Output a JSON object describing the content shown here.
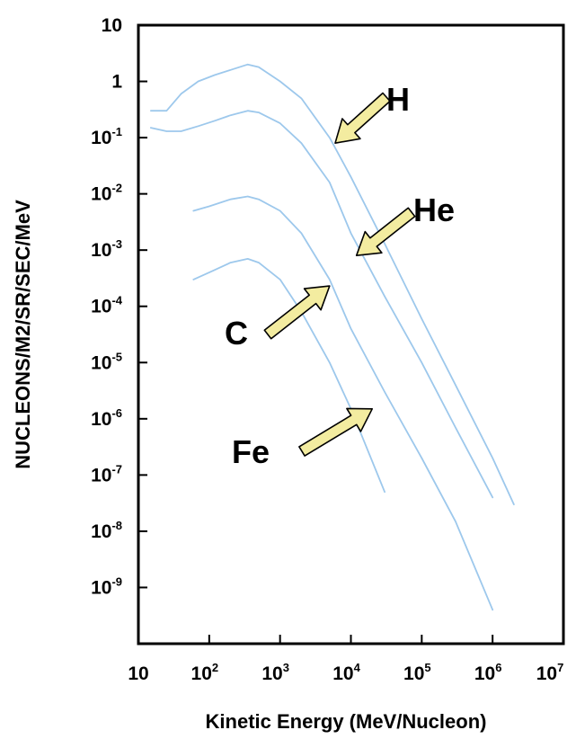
{
  "chart_data": {
    "type": "line",
    "title": "",
    "xlabel": "Kinetic Energy (MeV/Nucleon)",
    "ylabel": "NUCLEONS/M2/SR/SEC/MeV",
    "x_scale": "log",
    "y_scale": "log",
    "xlim": [
      10,
      10000000
    ],
    "ylim": [
      1e-10,
      10
    ],
    "grid": false,
    "legend": "none",
    "x_ticks": [
      {
        "base": "10",
        "exp": ""
      },
      {
        "base": "10",
        "exp": "2"
      },
      {
        "base": "10",
        "exp": "3"
      },
      {
        "base": "10",
        "exp": "4"
      },
      {
        "base": "10",
        "exp": "5"
      },
      {
        "base": "10",
        "exp": "6"
      },
      {
        "base": "10",
        "exp": "7"
      }
    ],
    "x_tick_values": [
      10,
      100,
      1000,
      10000,
      100000,
      1000000,
      10000000
    ],
    "y_ticks": [
      {
        "base": "10",
        "exp": ""
      },
      {
        "base": "1",
        "exp": ""
      },
      {
        "base": "10",
        "exp": "-1"
      },
      {
        "base": "10",
        "exp": "-2"
      },
      {
        "base": "10",
        "exp": "-3"
      },
      {
        "base": "10",
        "exp": "-4"
      },
      {
        "base": "10",
        "exp": "-5"
      },
      {
        "base": "10",
        "exp": "-6"
      },
      {
        "base": "10",
        "exp": "-7"
      },
      {
        "base": "10",
        "exp": "-8"
      },
      {
        "base": "10",
        "exp": "-9"
      }
    ],
    "y_tick_values": [
      10,
      1,
      0.1,
      0.01,
      0.001,
      0.0001,
      1e-05,
      1e-06,
      1e-07,
      1e-08,
      1e-09
    ],
    "series": [
      {
        "name": "H",
        "color": "#9dc8ec",
        "x": [
          15,
          25,
          40,
          70,
          120,
          200,
          350,
          500,
          1000,
          2000,
          5000,
          10000,
          30000,
          100000,
          300000,
          1000000,
          2000000
        ],
        "y": [
          0.3,
          0.3,
          0.6,
          1.0,
          1.3,
          1.6,
          2.0,
          1.8,
          1.0,
          0.5,
          0.1,
          0.02,
          0.0013,
          6e-05,
          4e-06,
          2e-07,
          3e-08
        ]
      },
      {
        "name": "He",
        "color": "#9dc8ec",
        "x": [
          15,
          25,
          40,
          70,
          120,
          200,
          350,
          500,
          1000,
          2000,
          5000,
          10000,
          30000,
          100000,
          300000,
          1000000
        ],
        "y": [
          0.15,
          0.13,
          0.13,
          0.16,
          0.2,
          0.25,
          0.3,
          0.28,
          0.18,
          0.08,
          0.016,
          0.002,
          0.00015,
          1e-05,
          7e-07,
          4e-08
        ]
      },
      {
        "name": "C",
        "color": "#9dc8ec",
        "x": [
          60,
          100,
          200,
          350,
          500,
          1000,
          2000,
          5000,
          10000,
          30000,
          100000,
          300000,
          1000000
        ],
        "y": [
          0.005,
          0.006,
          0.008,
          0.009,
          0.008,
          0.005,
          0.002,
          0.0003,
          4e-05,
          3e-06,
          2e-07,
          1.5e-08,
          4e-10
        ]
      },
      {
        "name": "Fe",
        "color": "#9dc8ec",
        "x": [
          60,
          100,
          200,
          350,
          500,
          1000,
          2000,
          5000,
          10000,
          30000
        ],
        "y": [
          0.0003,
          0.0004,
          0.0006,
          0.0007,
          0.0006,
          0.0003,
          8e-05,
          1e-05,
          1.5e-06,
          5e-08
        ]
      }
    ],
    "annotations": [
      {
        "text": "H",
        "x": 150000000,
        "y": 1.0,
        "arrow_to_x": 6000,
        "arrow_to_y": 0.08
      },
      {
        "text": "He",
        "x": 65000,
        "y": 0.006,
        "arrow_to_x": 12000,
        "arrow_to_y": 0.0008
      },
      {
        "text": "C",
        "x": 30,
        "y": 5e-05,
        "arrow_to_x": 5000,
        "arrow_to_y": 0.00023
      },
      {
        "text": "Fe",
        "x": 20,
        "y": 2e-07,
        "arrow_to_x": 20000,
        "arrow_to_y": 1.5e-06
      }
    ],
    "arrow_color": "#f3eca0"
  }
}
